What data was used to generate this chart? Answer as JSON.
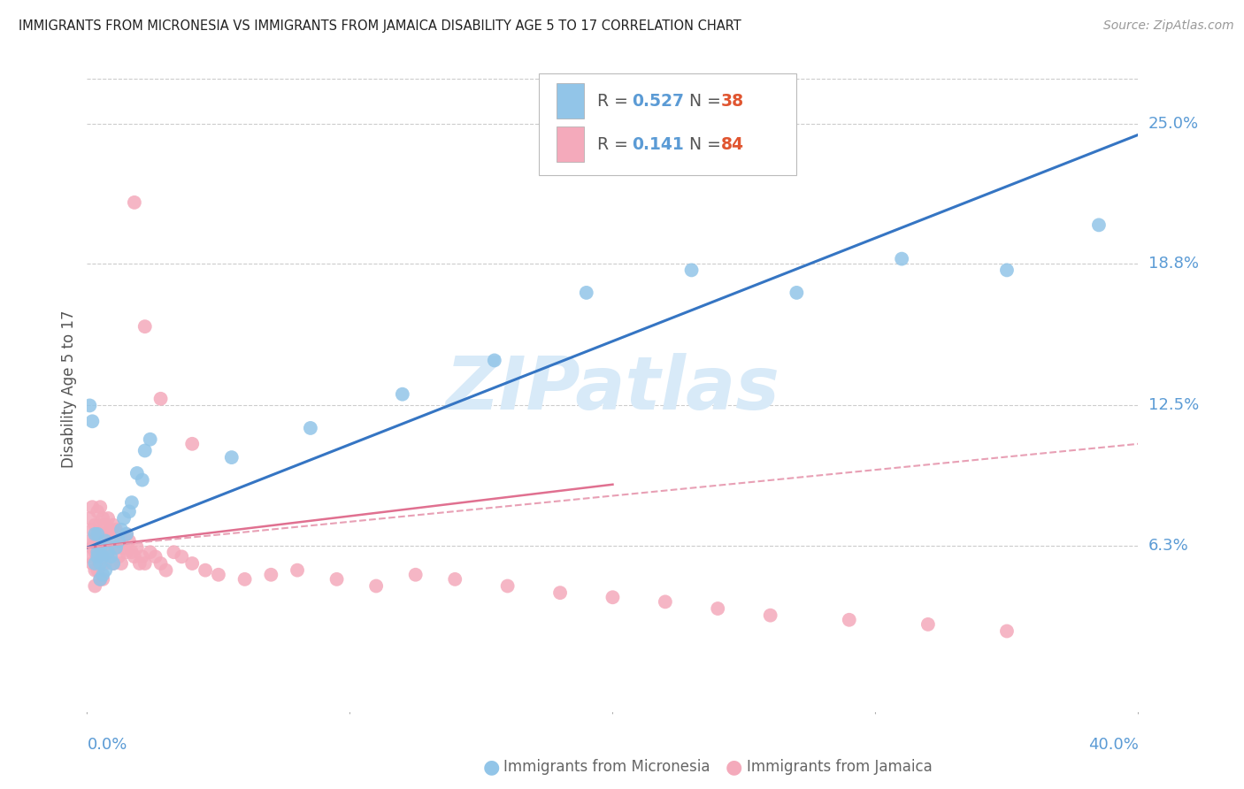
{
  "title": "IMMIGRANTS FROM MICRONESIA VS IMMIGRANTS FROM JAMAICA DISABILITY AGE 5 TO 17 CORRELATION CHART",
  "source": "Source: ZipAtlas.com",
  "ylabel": "Disability Age 5 to 17",
  "ytick_values": [
    0.063,
    0.125,
    0.188,
    0.25
  ],
  "ytick_labels": [
    "6.3%",
    "12.5%",
    "18.8%",
    "25.0%"
  ],
  "xlim": [
    0.0,
    0.4
  ],
  "ylim": [
    -0.01,
    0.275
  ],
  "color_mic": "#92C5E8",
  "color_jam": "#F4AABB",
  "color_mic_line": "#3575C3",
  "color_jam_line": "#E07090",
  "color_jam_dash": "#E8A0B5",
  "color_axis": "#5B9BD5",
  "color_grid": "#CCCCCC",
  "legend_r1": "0.527",
  "legend_n1": "38",
  "legend_r2": "0.141",
  "legend_n2": "84",
  "mic_x": [
    0.001,
    0.002,
    0.003,
    0.003,
    0.004,
    0.004,
    0.004,
    0.005,
    0.005,
    0.005,
    0.006,
    0.006,
    0.007,
    0.007,
    0.008,
    0.009,
    0.01,
    0.011,
    0.012,
    0.013,
    0.014,
    0.015,
    0.016,
    0.017,
    0.019,
    0.021,
    0.022,
    0.024,
    0.055,
    0.085,
    0.12,
    0.155,
    0.19,
    0.23,
    0.27,
    0.31,
    0.35,
    0.385
  ],
  "mic_y": [
    0.125,
    0.118,
    0.068,
    0.055,
    0.06,
    0.068,
    0.058,
    0.055,
    0.062,
    0.048,
    0.058,
    0.05,
    0.065,
    0.052,
    0.06,
    0.058,
    0.055,
    0.062,
    0.065,
    0.07,
    0.075,
    0.068,
    0.078,
    0.082,
    0.095,
    0.092,
    0.105,
    0.11,
    0.102,
    0.115,
    0.13,
    0.145,
    0.175,
    0.185,
    0.175,
    0.19,
    0.185,
    0.205
  ],
  "jam_x": [
    0.001,
    0.001,
    0.001,
    0.002,
    0.002,
    0.002,
    0.002,
    0.003,
    0.003,
    0.003,
    0.003,
    0.003,
    0.004,
    0.004,
    0.004,
    0.004,
    0.005,
    0.005,
    0.005,
    0.005,
    0.005,
    0.005,
    0.006,
    0.006,
    0.006,
    0.006,
    0.006,
    0.007,
    0.007,
    0.007,
    0.007,
    0.008,
    0.008,
    0.008,
    0.009,
    0.009,
    0.01,
    0.01,
    0.01,
    0.011,
    0.011,
    0.012,
    0.012,
    0.013,
    0.013,
    0.014,
    0.015,
    0.015,
    0.016,
    0.017,
    0.018,
    0.019,
    0.02,
    0.021,
    0.022,
    0.024,
    0.026,
    0.028,
    0.03,
    0.033,
    0.036,
    0.04,
    0.045,
    0.05,
    0.06,
    0.07,
    0.08,
    0.095,
    0.11,
    0.125,
    0.14,
    0.16,
    0.18,
    0.2,
    0.22,
    0.24,
    0.26,
    0.29,
    0.32,
    0.35,
    0.018,
    0.022,
    0.028,
    0.04
  ],
  "jam_y": [
    0.075,
    0.065,
    0.058,
    0.08,
    0.07,
    0.062,
    0.055,
    0.072,
    0.065,
    0.06,
    0.052,
    0.045,
    0.078,
    0.068,
    0.06,
    0.052,
    0.08,
    0.072,
    0.065,
    0.06,
    0.055,
    0.048,
    0.075,
    0.068,
    0.062,
    0.055,
    0.048,
    0.072,
    0.065,
    0.06,
    0.055,
    0.075,
    0.068,
    0.06,
    0.07,
    0.062,
    0.072,
    0.065,
    0.055,
    0.07,
    0.062,
    0.068,
    0.058,
    0.065,
    0.055,
    0.062,
    0.068,
    0.06,
    0.065,
    0.06,
    0.058,
    0.062,
    0.055,
    0.058,
    0.055,
    0.06,
    0.058,
    0.055,
    0.052,
    0.06,
    0.058,
    0.055,
    0.052,
    0.05,
    0.048,
    0.05,
    0.052,
    0.048,
    0.045,
    0.05,
    0.048,
    0.045,
    0.042,
    0.04,
    0.038,
    0.035,
    0.032,
    0.03,
    0.028,
    0.025,
    0.215,
    0.16,
    0.128,
    0.108
  ]
}
